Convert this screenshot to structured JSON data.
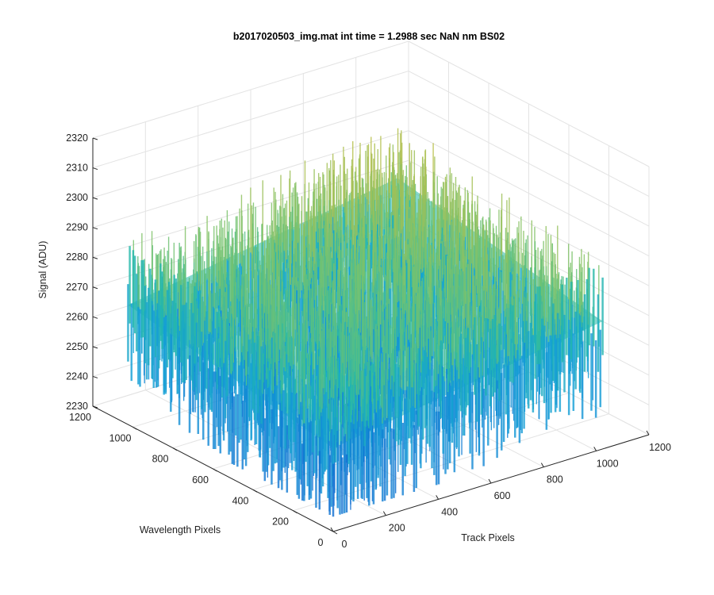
{
  "chart_data": {
    "type": "surface",
    "title": "b2017020503_img.mat int time = 1.2988 sec  NaN nm BS02",
    "xlabel": "Track Pixels",
    "ylabel": "Wavelength Pixels",
    "zlabel": "Signal (ADU)",
    "xlim": [
      0,
      1200
    ],
    "ylim": [
      0,
      1200
    ],
    "zlim": [
      2230,
      2320
    ],
    "xticks": [
      "0",
      "200",
      "400",
      "600",
      "800",
      "1000",
      "1200"
    ],
    "yticks": [
      "0",
      "200",
      "400",
      "600",
      "800",
      "1000",
      "1200"
    ],
    "zticks": [
      "2230",
      "2240",
      "2250",
      "2260",
      "2270",
      "2280",
      "2290",
      "2300",
      "2310",
      "2320"
    ],
    "grid": true,
    "colormap": "parula",
    "surface_summary": {
      "x_extent": [
        0,
        1024
      ],
      "y_extent": [
        0,
        1024
      ],
      "mean_signal": 2272,
      "noise_range": [
        2235,
        2310
      ],
      "low_corner_signal": 2258,
      "high_corner_signal": 2285
    }
  },
  "colors": {
    "grid": "#e3e3e3",
    "axis": "#262626",
    "low": "#0f8fd6",
    "mid": "#22b8a6",
    "high": "#d9bd3c"
  }
}
